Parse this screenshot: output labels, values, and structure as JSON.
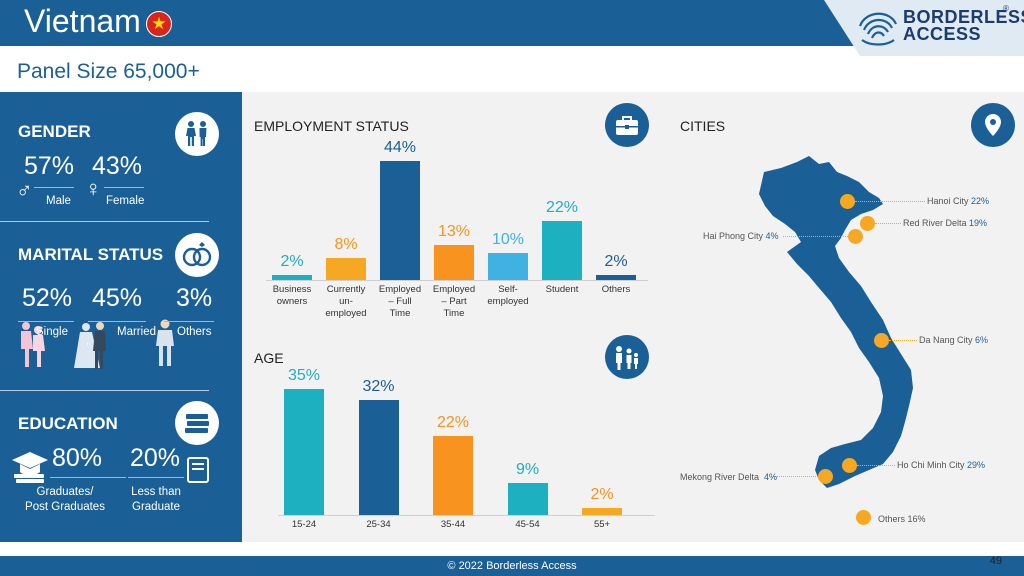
{
  "header": {
    "country": "Vietnam",
    "flag_icon": "vietnam-flag-icon",
    "logo_line1": "BORDERLESS",
    "logo_line2": "ACCESS",
    "logo_reg": "®",
    "panel_size": "Panel Size 65,000+"
  },
  "gender": {
    "title": "GENDER",
    "male_pct": "57%",
    "female_pct": "43%",
    "male_label": "Male",
    "female_label": "Female"
  },
  "marital": {
    "title": "MARITAL STATUS",
    "single_pct": "52%",
    "married_pct": "45%",
    "others_pct": "3%",
    "single_label": "Single",
    "married_label": "Married",
    "others_label": "Others",
    "married_comma": ","
  },
  "education": {
    "title": "EDUCATION",
    "grad_pct": "80%",
    "less_pct": "20%",
    "grad_label_1": "Graduates/",
    "grad_label_2": "Post Graduates",
    "less_label_1": "Less than",
    "less_label_2": "Graduate"
  },
  "employment": {
    "title": "EMPLOYMENT STATUS",
    "chart_data": {
      "type": "bar",
      "categories": [
        [
          "Business",
          "owners"
        ],
        [
          "Currently",
          "un-",
          "employed"
        ],
        [
          "Employed",
          "– Full",
          "Time"
        ],
        [
          "Employed",
          "– Part",
          "Time"
        ],
        [
          "Self-",
          "employed"
        ],
        [
          "Student"
        ],
        [
          "Others"
        ]
      ],
      "values": [
        2,
        8,
        44,
        13,
        10,
        22,
        2
      ],
      "labels": [
        "2%",
        "8%",
        "44%",
        "13%",
        "10%",
        "22%",
        "2%"
      ],
      "colors": [
        "#1cb0c0",
        "#f7a823",
        "#1a5f96",
        "#f7931e",
        "#3fb1e3",
        "#1cb0c0",
        "#1a5f96"
      ],
      "label_colors": [
        "#1cb0c0",
        "#f7931e",
        "#1a5f96",
        "#f7931e",
        "#3fb1e3",
        "#1cb0c0",
        "#1a5f96"
      ]
    }
  },
  "age": {
    "title": "AGE",
    "chart_data": {
      "type": "bar",
      "categories": [
        "15-24",
        "25-34",
        "35-44",
        "45-54",
        "55+"
      ],
      "values": [
        35,
        32,
        22,
        9,
        2
      ],
      "labels": [
        "35%",
        "32%",
        "22%",
        "9%",
        "2%"
      ],
      "colors": [
        "#1cb0c0",
        "#1a5f96",
        "#f7931e",
        "#1cb0c0",
        "#f7a823"
      ],
      "label_colors": [
        "#1cb0c0",
        "#1a5f96",
        "#f7931e",
        "#1cb0c0",
        "#f7931e"
      ]
    }
  },
  "cities": {
    "title": "CITIES",
    "items": [
      {
        "name": "Hanoi City",
        "pct": "22%"
      },
      {
        "name": "Red River Delta",
        "pct": "19%"
      },
      {
        "name": "Hai Phong City",
        "pct": "4%"
      },
      {
        "name": "Da Nang City",
        "pct": "6%"
      },
      {
        "name": "Ho Chi Minh City",
        "pct": "29%"
      },
      {
        "name": "Mekong River Delta",
        "pct": "4%"
      },
      {
        "name": "Others",
        "pct": "16%"
      }
    ]
  },
  "footer": {
    "copyright": "© 2022 Borderless Access",
    "page_number": "49"
  },
  "colors": {
    "primary": "#1a5f96",
    "teal": "#1cb0c0",
    "orange": "#f7931e",
    "light_orange": "#f7a823",
    "light_blue": "#3fb1e3"
  }
}
